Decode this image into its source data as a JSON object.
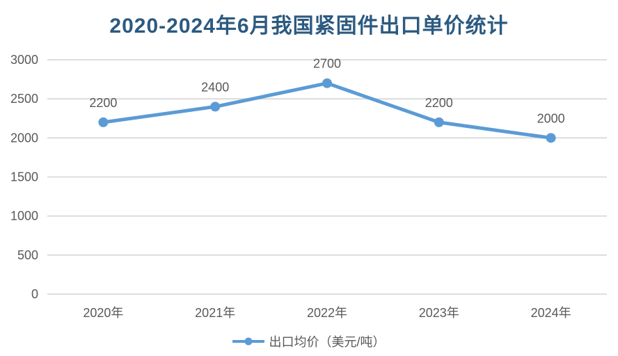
{
  "chart_data": {
    "type": "line",
    "title": "2020-2024年6月我国紧固件出口单价统计",
    "categories": [
      "2020年",
      "2021年",
      "2022年",
      "2023年",
      "2024年"
    ],
    "series": [
      {
        "name": "出口均价（美元/吨）",
        "values": [
          2200,
          2400,
          2700,
          2200,
          2000
        ]
      }
    ],
    "ylim": [
      0,
      3000
    ],
    "yticks": [
      0,
      500,
      1000,
      1500,
      2000,
      2500,
      3000
    ],
    "grid": true,
    "legend_position": "bottom",
    "data_labels": [
      2200,
      2400,
      2700,
      2200,
      2000
    ]
  },
  "legend": {
    "label": "出口均价（美元/吨）"
  },
  "colors": {
    "series_line": "#5B9BD5",
    "title_text": "#2C5A80",
    "axis_text": "#595959",
    "gridline": "#D9D9D9",
    "background": "#FFFFFF"
  }
}
